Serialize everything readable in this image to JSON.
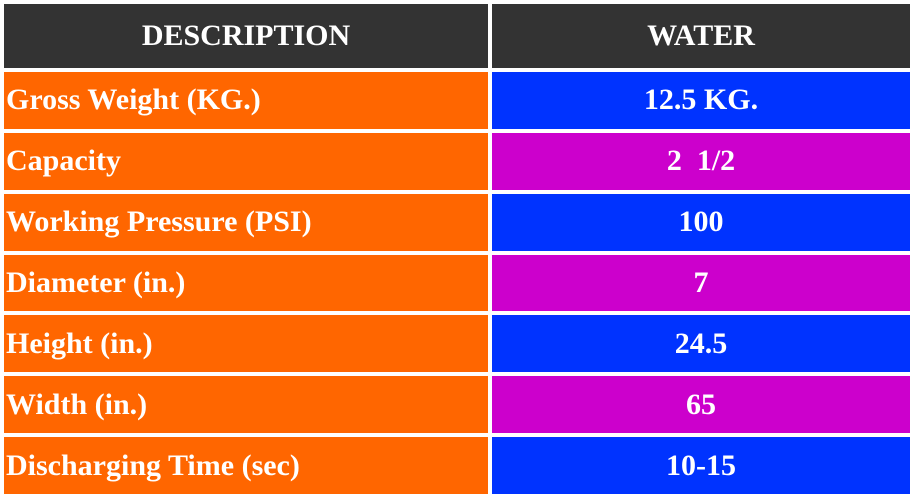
{
  "colors": {
    "header_bg": "#333333",
    "description_bg": "#ff6600",
    "value_bg_blue": "#0033ff",
    "value_bg_magenta": "#cc00cc",
    "text": "#ffffff"
  },
  "table": {
    "headers": {
      "description": "DESCRIPTION",
      "value": "WATER"
    },
    "rows": [
      {
        "label": "Gross Weight (KG.)",
        "value": "12.5 KG."
      },
      {
        "label": "Capacity",
        "value": "2  1/2"
      },
      {
        "label": "Working Pressure (PSI)",
        "value": "100"
      },
      {
        "label": "Diameter (in.)",
        "value": "7"
      },
      {
        "label": "Height (in.)",
        "value": "24.5"
      },
      {
        "label": "Width (in.)",
        "value": "65"
      },
      {
        "label": "Discharging Time (sec)",
        "value": "10-15"
      }
    ]
  }
}
